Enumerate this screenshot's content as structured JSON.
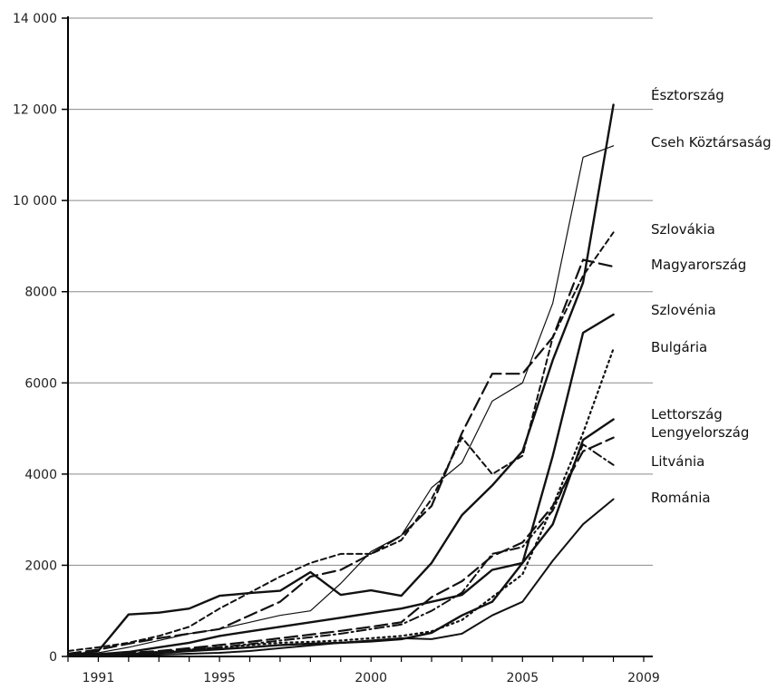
{
  "chart_data": {
    "type": "line",
    "title": "",
    "xlabel": "",
    "ylabel": "",
    "xlim": [
      1990,
      2009
    ],
    "ylim": [
      0,
      14000
    ],
    "x_ticks": [
      {
        "value": 1991,
        "label": "1991"
      },
      {
        "value": 1995,
        "label": "1995"
      },
      {
        "value": 2000,
        "label": "2000"
      },
      {
        "value": 2005,
        "label": "2005"
      },
      {
        "value": 2009,
        "label": "2009"
      }
    ],
    "y_ticks": [
      {
        "value": 0,
        "label": "0"
      },
      {
        "value": 2000,
        "label": "2000"
      },
      {
        "value": 4000,
        "label": "4000"
      },
      {
        "value": 6000,
        "label": "6000"
      },
      {
        "value": 8000,
        "label": "8000"
      },
      {
        "value": 10000,
        "label": "10 000"
      },
      {
        "value": 12000,
        "label": "12 000"
      },
      {
        "value": 14000,
        "label": "14 000"
      }
    ],
    "grid": "horizontal",
    "legend": "series labels at right end of lines",
    "x": [
      1990,
      1991,
      1992,
      1993,
      1994,
      1995,
      1996,
      1997,
      1998,
      1999,
      2000,
      2001,
      2002,
      2003,
      2004,
      2005,
      2006,
      2007,
      2008
    ],
    "series": [
      {
        "name": "Észtország",
        "style": "thick-solid",
        "values": [
          20,
          120,
          920,
          960,
          1050,
          1330,
          1390,
          1440,
          1850,
          1350,
          1450,
          1330,
          2050,
          3100,
          3750,
          4500,
          6500,
          8200,
          12100
        ]
      },
      {
        "name": "Cseh Köztársaság",
        "style": "thin-solid",
        "values": [
          30,
          80,
          200,
          350,
          500,
          600,
          750,
          900,
          1000,
          1600,
          2300,
          2650,
          3700,
          4250,
          5600,
          6000,
          7750,
          10950,
          11200
        ]
      },
      {
        "name": "Szlovákia",
        "style": "long-dash",
        "values": [
          60,
          150,
          280,
          400,
          500,
          600,
          900,
          1200,
          1750,
          1900,
          2250,
          2650,
          3300,
          4900,
          6200,
          6200,
          7000,
          8700,
          8550
        ]
      },
      {
        "name": "Magyarország",
        "style": "short-dash",
        "values": [
          120,
          200,
          300,
          450,
          650,
          1050,
          1400,
          1750,
          2050,
          2250,
          2250,
          2550,
          3450,
          4800,
          4000,
          4400,
          7000,
          8350,
          9300
        ]
      },
      {
        "name": "Szlovénia",
        "style": "thick-solid",
        "values": [
          20,
          50,
          100,
          200,
          300,
          450,
          550,
          650,
          750,
          850,
          950,
          1050,
          1200,
          1350,
          1900,
          2050,
          4400,
          7100,
          7500
        ]
      },
      {
        "name": "Bulgária",
        "style": "dotted",
        "values": [
          20,
          30,
          60,
          100,
          150,
          200,
          250,
          300,
          320,
          350,
          400,
          450,
          550,
          800,
          1300,
          1800,
          3300,
          4900,
          6750
        ]
      },
      {
        "name": "Lettország",
        "style": "thick-solid",
        "values": [
          10,
          20,
          50,
          80,
          120,
          160,
          200,
          250,
          280,
          300,
          330,
          380,
          520,
          900,
          1200,
          2050,
          2900,
          4750,
          5200
        ]
      },
      {
        "name": "Lengyelország",
        "style": "long-dash",
        "values": [
          20,
          40,
          80,
          120,
          180,
          250,
          320,
          400,
          480,
          560,
          650,
          750,
          1300,
          1650,
          2200,
          2500,
          3300,
          4500,
          4800
        ]
      },
      {
        "name": "Litvánia",
        "style": "dash-dot",
        "values": [
          10,
          30,
          60,
          100,
          150,
          200,
          270,
          350,
          420,
          500,
          600,
          700,
          1000,
          1400,
          2250,
          2400,
          3200,
          4650,
          4200
        ]
      },
      {
        "name": "Románia",
        "style": "solid",
        "values": [
          10,
          20,
          30,
          40,
          60,
          80,
          120,
          180,
          240,
          300,
          350,
          400,
          380,
          500,
          900,
          1200,
          2100,
          2900,
          3450
        ]
      }
    ]
  }
}
